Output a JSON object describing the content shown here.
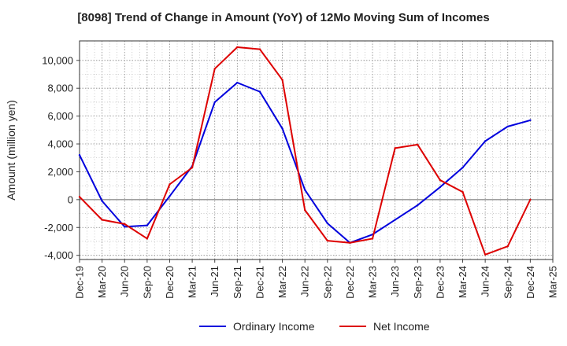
{
  "chart_data": {
    "type": "line",
    "title": "[8098]  Trend of Change in Amount (YoY) of 12Mo Moving Sum of Incomes",
    "xlabel": "",
    "ylabel": "Amount (million yen)",
    "ylim": [
      -4300,
      11400
    ],
    "yticks": [
      -4000,
      -2000,
      0,
      2000,
      4000,
      6000,
      8000,
      10000
    ],
    "ytick_labels": [
      "-4,000",
      "-2,000",
      "0",
      "2,000",
      "4,000",
      "6,000",
      "8,000",
      "10,000"
    ],
    "grid": true,
    "legend_position": "bottom-center",
    "categories": [
      "Dec-19",
      "Mar-20",
      "Jun-20",
      "Sep-20",
      "Dec-20",
      "Mar-21",
      "Jun-21",
      "Sep-21",
      "Dec-21",
      "Mar-22",
      "Jun-22",
      "Sep-22",
      "Dec-22",
      "Mar-23",
      "Jun-23",
      "Sep-23",
      "Dec-23",
      "Mar-24",
      "Jun-24",
      "Sep-24",
      "Dec-24",
      "Mar-25"
    ],
    "series": [
      {
        "name": "Ordinary Income",
        "color": "#0000dd",
        "values": [
          3200,
          -100,
          -1950,
          -1850,
          250,
          2400,
          7000,
          8400,
          7750,
          5100,
          700,
          -1700,
          -3100,
          -2500,
          -1450,
          -400,
          900,
          2300,
          4200,
          5250,
          5700,
          null
        ]
      },
      {
        "name": "Net Income",
        "color": "#dd0000",
        "values": [
          200,
          -1450,
          -1750,
          -2800,
          1100,
          2300,
          9400,
          10950,
          10800,
          8600,
          -750,
          -2950,
          -3100,
          -2800,
          3700,
          3950,
          1400,
          550,
          -3950,
          -3350,
          0,
          null
        ]
      }
    ]
  }
}
